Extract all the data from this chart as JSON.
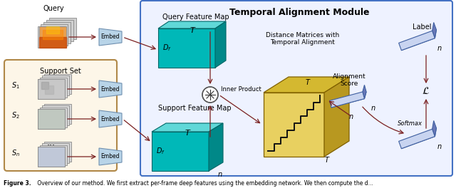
{
  "title": "Temporal Alignment Module",
  "caption_bold": "Figure 3.",
  "caption_normal": " Overview of our method. We first extract per-frame deep features using the embedding network. We then compute the d...",
  "teal_face": "#00b8b8",
  "teal_top": "#60d8d8",
  "teal_side": "#008888",
  "teal_edge": "#006666",
  "gold_face": "#e8d060",
  "gold_top": "#d4b830",
  "gold_side": "#b89820",
  "gold_edge": "#806000",
  "blue_box_edge": "#4472c4",
  "blue_box_bg": "#eef2ff",
  "support_box_edge": "#b08848",
  "support_box_bg": "#fdf6e8",
  "embed_face": "#b8d4e8",
  "embed_edge": "#7090b0",
  "arrow_color": "#7a2020",
  "tensor_face": "#c8d4f0",
  "tensor_top": "#a0b0e0",
  "tensor_side": "#6878b8",
  "tensor_edge": "#4060a0",
  "frame_color": "#d8d8d8",
  "frame_edge": "#999999",
  "dtw_color": "#111111"
}
